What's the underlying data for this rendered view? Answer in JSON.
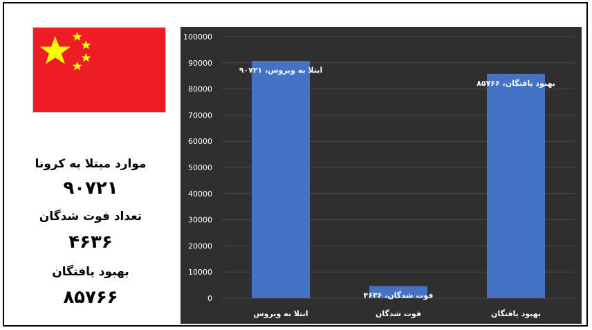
{
  "colors": {
    "flag_red": "#ee1c25",
    "flag_star": "#ffff00",
    "chart_background": "#2f2f2f",
    "bar_fill": "#4472c4",
    "gridline": "#4a4a4a",
    "text_light": "#ffffff"
  },
  "left_panel": {
    "flag_icon": "china-flag-icon",
    "cases_label": "موارد مبتلا به کرونا",
    "cases_value": "۹۰۷۲۱",
    "deaths_label": "تعداد فوت شدگان",
    "deaths_value": "۴۶۳۶",
    "recovered_label": "بهبود یافتگان",
    "recovered_value": "۸۵۷۶۶"
  },
  "chart_data": {
    "type": "bar",
    "categories": [
      "ابتلا به ویروس",
      "فوت شدگان",
      "بهبود یافتگان"
    ],
    "values": [
      90721,
      4636,
      85766
    ],
    "data_labels": [
      "ابتلا به ویروس، ۹۰۷۲۱",
      "فوت شدگان، ۴۶۳۶",
      "بهبود یافتگان، ۸۵۷۶۶"
    ],
    "ylim": [
      0,
      100000
    ],
    "yticks": [
      "0",
      "10000",
      "20000",
      "30000",
      "40000",
      "50000",
      "60000",
      "70000",
      "80000",
      "90000",
      "100000"
    ],
    "grid": true,
    "title": "",
    "xlabel": "",
    "ylabel": ""
  }
}
